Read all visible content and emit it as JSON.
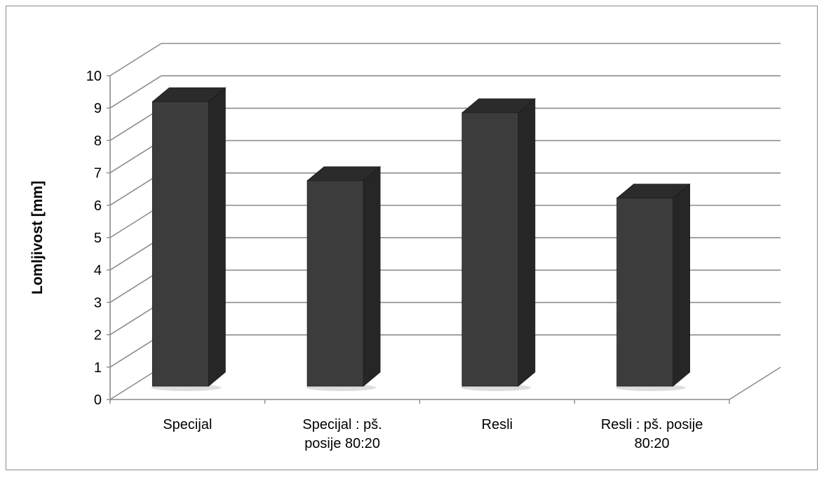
{
  "chart_data": {
    "type": "bar",
    "style": "3d-column",
    "categories": [
      [
        "Specijal"
      ],
      [
        "Specijal : pš.",
        "posije 80:20"
      ],
      [
        "Resli"
      ],
      [
        "Resli : pš. posije",
        "80:20"
      ]
    ],
    "values": [
      9.0,
      6.5,
      8.65,
      5.95
    ],
    "ylabel": "Lomljivost [mm]",
    "xlabel": "",
    "ylim": [
      0,
      10
    ],
    "yticks": [
      0,
      1,
      2,
      3,
      4,
      5,
      6,
      7,
      8,
      9,
      10
    ],
    "grid": true,
    "legend": "none",
    "colors": {
      "bar_front": "#3c3c3c",
      "bar_side": "#262626",
      "bar_top": "#2b2b2b",
      "grid": "#8c8c8c",
      "axis": "#8c8c8c"
    }
  }
}
